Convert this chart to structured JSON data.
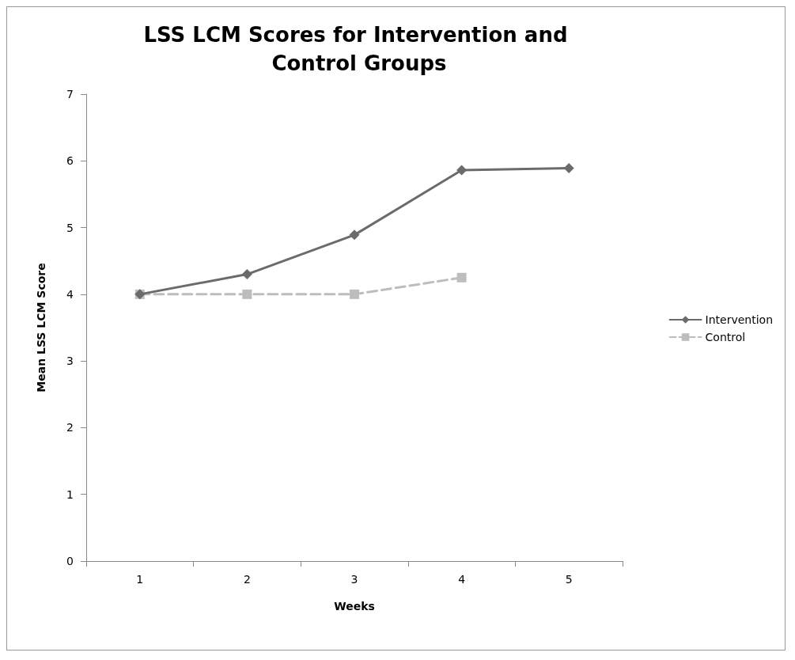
{
  "chart_data": {
    "type": "line",
    "title": "LSS LCM Scores for Intervention and Control Groups",
    "xlabel": "Weeks",
    "ylabel": "Mean LSS LCM Score",
    "categories": [
      "1",
      "2",
      "3",
      "4",
      "5"
    ],
    "series": [
      {
        "name": "Intervention",
        "color": "#6b6b6b",
        "values": [
          4.0,
          4.3,
          4.89,
          5.86,
          5.89
        ],
        "marker": "diamond",
        "line_style": "solid"
      },
      {
        "name": "Control",
        "color": "#bdbdbd",
        "values": [
          4.0,
          4.0,
          4.0,
          4.25,
          null
        ],
        "marker": "square",
        "line_style": "dashed"
      }
    ],
    "ylim": [
      0,
      7
    ],
    "yticks": [
      0,
      1,
      2,
      3,
      4,
      5,
      6,
      7
    ],
    "grid": false,
    "legend": "right"
  }
}
